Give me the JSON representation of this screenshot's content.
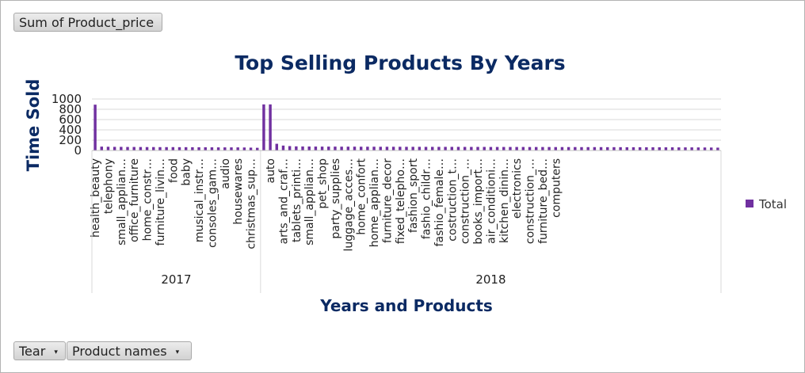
{
  "field_buttons": {
    "value_field": "Sum of Product_price",
    "filter_year": "Tear",
    "filter_products": "Product names",
    "dropdown_glyph": "▾"
  },
  "colors": {
    "bar": "#7030a0",
    "title": "#0b2a63",
    "grid": "#d9d9d9"
  },
  "chart_data": {
    "type": "bar",
    "title": "Top Selling Products By Years",
    "xlabel": "Years and Products",
    "ylabel": "Time  Sold",
    "ylim": [
      0,
      1000
    ],
    "yticks": [
      0,
      200,
      400,
      600,
      800,
      1000
    ],
    "grid": true,
    "legend": {
      "position": "right",
      "entries": [
        "Total"
      ]
    },
    "groups": [
      {
        "name": "2017",
        "values": [
          890,
          75,
          72,
          70,
          70,
          68,
          68,
          67,
          66,
          66,
          65,
          65,
          65,
          64,
          64,
          63,
          62,
          62,
          61,
          60,
          60,
          60,
          60,
          58,
          55,
          52
        ],
        "labels": [
          "health_beauty",
          "",
          "telephony",
          "",
          "small_applian…",
          "",
          "office_furniture",
          "",
          "home_constr…",
          "",
          "furniture_livin…",
          "",
          "food",
          "",
          "baby",
          "",
          "musical_instr…",
          "",
          "consoles_gam…",
          "",
          "audio",
          "",
          "housewares",
          "",
          "christmas_sup…",
          ""
        ]
      },
      {
        "name": "2018",
        "values": [
          895,
          895,
          130,
          95,
          85,
          80,
          78,
          77,
          76,
          75,
          75,
          75,
          74,
          74,
          74,
          73,
          73,
          73,
          72,
          72,
          72,
          72,
          71,
          71,
          71,
          70,
          70,
          70,
          70,
          70,
          70,
          69,
          69,
          69,
          69,
          68,
          68,
          68,
          68,
          68,
          68,
          67,
          67,
          67,
          67,
          66,
          66,
          66,
          66,
          65,
          65,
          65,
          65,
          64,
          64,
          64,
          63,
          63,
          63,
          62,
          62,
          62,
          61,
          61,
          60,
          60,
          60,
          59,
          58,
          57,
          55
        ],
        "labels": [
          "",
          "auto",
          "",
          "arts_and_craf…",
          "",
          "tablets_printi…",
          "",
          "small_applian…",
          "",
          "pet_shop",
          "",
          "party_supplies",
          "",
          "luggage_acces…",
          "",
          "home_confort",
          "",
          "home_applian…",
          "",
          "furniture_decor",
          "",
          "fixed_telepho…",
          "",
          "fashion_sport",
          "",
          "fashio_childr…",
          "",
          "fashio_female…",
          "",
          "costruction_t…",
          "",
          "construction_…",
          "",
          "books_import…",
          "",
          "air_conditioni…",
          "",
          "kitchen_dinin…",
          "",
          "electronics",
          "",
          "construction_…",
          "",
          "furniture_bed…",
          "",
          "computers",
          "",
          "",
          "",
          "",
          "",
          "",
          "",
          "",
          "",
          "",
          "",
          "",
          "",
          "",
          "",
          "",
          "",
          "",
          "",
          "",
          "",
          "",
          "",
          "",
          ""
        ]
      }
    ]
  }
}
